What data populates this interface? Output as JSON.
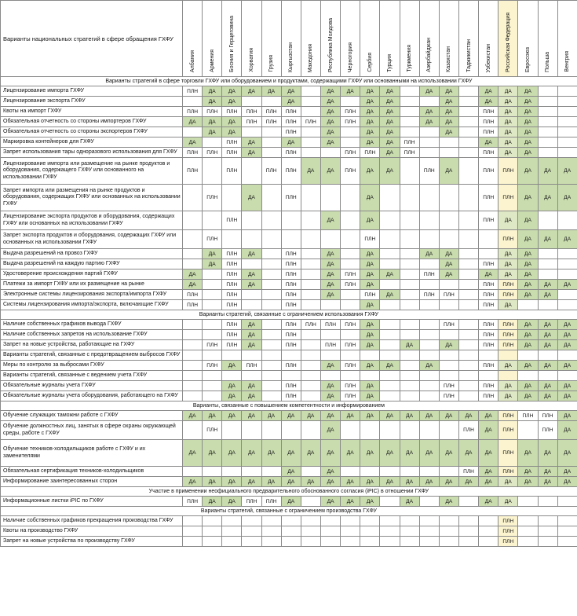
{
  "header": {
    "title": "Варианты национальных стратегий в сфере обращения ГХФУ",
    "countries": [
      "Албания",
      "Армения",
      "Босния и Герцеговина",
      "Хорватия",
      "Грузия",
      "Кыргызстан",
      "Македония",
      "Республика Молдова",
      "Черногория",
      "Сербия",
      "Турция",
      "Туркмения",
      "Азербайджан",
      "Казахстан",
      "Таджикистан",
      "Узбекистан",
      "Российская Федерация",
      "Евросоюз",
      "Польша",
      "Венгрия"
    ]
  },
  "colors": {
    "da": "#c9dcae",
    "highlight": "#fbf4cf"
  },
  "sections": [
    {
      "title": "Варианты стратегий в сфере торговли ГХФУ или оборудованием и продуктами, содержащими ГХФУ или основанными на использовании ГХФУ",
      "rows": [
        {
          "label": "Лицензирование импорта ГХФУ",
          "h": 1,
          "cells": [
            "ПЛН",
            "ДА",
            "ДА",
            "ДА",
            "ДА",
            "ДА",
            "",
            "ДА",
            "ДА",
            "ДА",
            "ДА",
            "",
            "ДА",
            "ДА",
            "",
            "ДА",
            "ДА",
            "ДА",
            "",
            ""
          ]
        },
        {
          "label": "Лицензирование экспорта ГХФУ",
          "h": 1,
          "cells": [
            "",
            "ДА",
            "ДА",
            "",
            "",
            "ДА",
            "",
            "ДА",
            "",
            "ДА",
            "ДА",
            "",
            "",
            "ДА",
            "",
            "ДА",
            "ДА",
            "ДА",
            "",
            ""
          ]
        },
        {
          "label": "Квоты на импорт ГХФУ",
          "h": 1,
          "cells": [
            "ПЛН",
            "ПЛН",
            "ПЛН",
            "ПЛН",
            "ПЛН",
            "ПЛН",
            "",
            "ДА",
            "ПЛН",
            "ДА",
            "ДА",
            "",
            "ДА",
            "ДА",
            "",
            "ПЛН",
            "ДА",
            "ДА",
            "",
            ""
          ]
        },
        {
          "label": "Обязательная отчетность со стороны импортеров ГХФУ",
          "h": 1,
          "cells": [
            "ДА",
            "ДА",
            "ДА",
            "ПЛН",
            "ПЛН",
            "ПЛН",
            "ПЛН",
            "ДА",
            "ПЛН",
            "ДА",
            "ДА",
            "",
            "ДА",
            "ДА",
            "",
            "ПЛН",
            "ДА",
            "ДА",
            "",
            ""
          ]
        },
        {
          "label": "Обязательная отчетность со стороны экспортеров ГХФУ",
          "h": 1,
          "cells": [
            "",
            "ДА",
            "ДА",
            "",
            "",
            "ПЛН",
            "",
            "ДА",
            "",
            "ДА",
            "ДА",
            "",
            "",
            "ДА",
            "",
            "ПЛН",
            "ДА",
            "ДА",
            "",
            ""
          ]
        },
        {
          "label": "Маркировка контейнеров для ГХФУ",
          "h": 1,
          "cells": [
            "ДА",
            "",
            "ПЛН",
            "ДА",
            "",
            "ДА",
            "",
            "ДА",
            "",
            "ДА",
            "ДА",
            "ПЛН",
            "",
            "",
            "",
            "ДА",
            "ДА",
            "ДА",
            "",
            ""
          ]
        },
        {
          "label": "Запрет использования тары одноразового использования для ГХФУ",
          "h": 1,
          "cells": [
            "ПЛН",
            "ПЛН",
            "ПЛН",
            "ДА",
            "",
            "ПЛН",
            "",
            "",
            "ПЛН",
            "ПЛН",
            "ДА",
            "ПЛН",
            "",
            "",
            "",
            "ПЛН",
            "ДА",
            "ДА",
            "",
            ""
          ]
        },
        {
          "label": "Лицензирование импорта или размещение на рынке продуктов и оборудования, содержащего ГХФУ или основанного на использовании ГХФУ",
          "h": 3,
          "cells": [
            "ПЛН",
            "",
            "ПЛН",
            "",
            "ПЛН",
            "ПЛН",
            "ДА",
            "ДА",
            "ПЛН",
            "ДА",
            "ДА",
            "",
            "ПЛН",
            "ДА",
            "",
            "ПЛН",
            "ПЛН",
            "ДА",
            "ДА",
            "ДА"
          ]
        },
        {
          "label": "Запрет импорта или размещения на рынке продуктов и оборудования, содержащих ГХФУ или основанных на использовании ГХФУ",
          "h": 3,
          "cells": [
            "",
            "ПЛН",
            "",
            "ДА",
            "",
            "ПЛН",
            "",
            "",
            "",
            "ДА",
            "",
            "",
            "",
            "",
            "",
            "ПЛН",
            "ПЛН",
            "ДА",
            "ДА",
            "ДА"
          ]
        },
        {
          "label": "Лицензирование экспорта продуктов и оборудования, содержащих ГХФУ или основанных на использовании ГХФУ",
          "h": 2,
          "cells": [
            "",
            "",
            "ПЛН",
            "",
            "",
            "",
            "",
            "ДА",
            "",
            "ДА",
            "",
            "",
            "",
            "",
            "",
            "ПЛН",
            "ДА",
            "ДА",
            "",
            ""
          ]
        },
        {
          "label": "Запрет экспорта продуктов и оборудования, содержащих ГХФУ или основанных на использовании ГХФУ",
          "h": 2,
          "cells": [
            "",
            "ПЛН",
            "",
            "",
            "",
            "",
            "",
            "",
            "",
            "ПЛН",
            "",
            "",
            "",
            "",
            "",
            "",
            "ПЛН",
            "ДА",
            "ДА",
            "ДА"
          ]
        },
        {
          "label": "Выдача разрешений на провоз ГХФУ",
          "h": 1,
          "cells": [
            "",
            "ДА",
            "ПЛН",
            "ДА",
            "",
            "ПЛН",
            "",
            "ДА",
            "",
            "ДА",
            "",
            "",
            "ДА",
            "ДА",
            "",
            "",
            "ДА",
            "ДА",
            "",
            ""
          ]
        },
        {
          "label": "Выдача разрешений на каждую партию ГХФУ",
          "h": 1,
          "cells": [
            "",
            "ДА",
            "ПЛН",
            "",
            "",
            "ПЛН",
            "",
            "ДА",
            "",
            "ДА",
            "",
            "",
            "",
            "ДА",
            "",
            "ПЛН",
            "ДА",
            "ДА",
            "",
            ""
          ]
        },
        {
          "label": "Удостоверение происхождения партий ГХФУ",
          "h": 1,
          "cells": [
            "ДА",
            "",
            "ПЛН",
            "ДА",
            "",
            "ПЛН",
            "",
            "ДА",
            "ПЛН",
            "ДА",
            "ДА",
            "",
            "ПЛН",
            "ДА",
            "",
            "ДА",
            "ДА",
            "ДА",
            "",
            ""
          ]
        },
        {
          "label": "Платежи за импорт ГХФУ или их размещение на рынке",
          "h": 1,
          "cells": [
            "ДА",
            "",
            "ПЛН",
            "ДА",
            "",
            "ПЛН",
            "",
            "ДА",
            "ПЛН",
            "ДА",
            "",
            "",
            "",
            "",
            "",
            "ПЛН",
            "ПЛН",
            "ДА",
            "ДА",
            "ДА"
          ]
        },
        {
          "label": "Электронные системы лицензирования экспорта/импорта ГХФУ",
          "h": 1,
          "cells": [
            "ПЛН",
            "",
            "ПЛН",
            "",
            "",
            "ПЛН",
            "",
            "ДА",
            "",
            "ПЛН",
            "ДА",
            "",
            "ПЛН",
            "ПЛН",
            "",
            "ПЛН",
            "ПЛН",
            "ДА",
            "ДА",
            ""
          ]
        },
        {
          "label": "Системы лицензирования импорта/экспорта, включающие ГХФУ",
          "h": 1,
          "cells": [
            "ПЛН",
            "",
            "ПЛН",
            "",
            "",
            "ПЛН",
            "",
            "",
            "",
            "ДА",
            "",
            "",
            "",
            "",
            "",
            "ПЛН",
            "ДА",
            "",
            "",
            ""
          ]
        }
      ]
    },
    {
      "title": "Варианты стратегий, связанные с ограничением использования ГХФУ",
      "rows": [
        {
          "label": "Наличие собственных графиков вывода ГХФУ",
          "h": 1,
          "cells": [
            "",
            "",
            "ПЛН",
            "ДА",
            "",
            "ПЛН",
            "ПЛН",
            "ПЛН",
            "ПЛН",
            "ДА",
            "",
            "",
            "",
            "ПЛН",
            "",
            "ПЛН",
            "ПЛН",
            "ДА",
            "ДА",
            "ДА"
          ]
        },
        {
          "label": "Наличие собственных запретов на использование ГХФУ",
          "h": 1,
          "cells": [
            "",
            "",
            "ПЛН",
            "ДА",
            "",
            "ПЛН",
            "",
            "",
            "",
            "ДА",
            "",
            "",
            "",
            "",
            "",
            "ПЛН",
            "ПЛН",
            "ДА",
            "ДА",
            "ДА"
          ]
        },
        {
          "label": "Запрет на новые устройства, работающие на ГХФУ",
          "h": 1,
          "cells": [
            "",
            "ПЛН",
            "ПЛН",
            "ДА",
            "",
            "ПЛН",
            "",
            "ПЛН",
            "ПЛН",
            "ДА",
            "",
            "ДА",
            "",
            "ДА",
            "",
            "ПЛН",
            "ПЛН",
            "ДА",
            "ДА",
            "ДА"
          ]
        },
        {
          "label": "Варианты стратегий, связанные с предотвращением выбросов ГХФУ",
          "h": 1,
          "cells": [
            "",
            "",
            "",
            "",
            "",
            "",
            "",
            "",
            "",
            "",
            "",
            "",
            "",
            "",
            "",
            "",
            "",
            "",
            "",
            ""
          ]
        },
        {
          "label": "Меры по контролю за выбросами ГХФУ",
          "h": 1,
          "cells": [
            "",
            "ПЛН",
            "ДА",
            "ПЛН",
            "",
            "ПЛН",
            "",
            "ДА",
            "ПЛН",
            "ДА",
            "ДА",
            "",
            "ДА",
            "",
            "",
            "ПЛН",
            "ДА",
            "ДА",
            "ДА",
            "ДА"
          ]
        },
        {
          "label": "Варианты стратегий, связанные с ведением учета ГХФУ",
          "h": 1,
          "cells": [
            "",
            "",
            "",
            "",
            "",
            "",
            "",
            "",
            "",
            "",
            "",
            "",
            "",
            "",
            "",
            "",
            "",
            "",
            "",
            ""
          ]
        },
        {
          "label": "Обязательные журналы учета ГХФУ",
          "h": 1,
          "cells": [
            "",
            "",
            "ДА",
            "ДА",
            "",
            "ПЛН",
            "",
            "ДА",
            "ПЛН",
            "ДА",
            "",
            "",
            "",
            "ПЛН",
            "",
            "ПЛН",
            "ДА",
            "ДА",
            "ДА",
            "ДА"
          ]
        },
        {
          "label": "Обязательные журналы учета оборудования, работающего на ГХФУ",
          "h": 1,
          "cells": [
            "",
            "",
            "ДА",
            "ДА",
            "",
            "ПЛН",
            "",
            "ДА",
            "ПЛН",
            "ДА",
            "",
            "",
            "",
            "ПЛН",
            "",
            "ПЛН",
            "ДА",
            "ДА",
            "ДА",
            "ДА"
          ]
        }
      ]
    },
    {
      "title": "Варианты, связанные с повышением компетентности и информированием",
      "rows": [
        {
          "label": "Обучение служащих таможни работе с ГХФУ",
          "h": 1,
          "cells": [
            "ДА",
            "ДА",
            "ДА",
            "ДА",
            "ДА",
            "ДА",
            "ДА",
            "ДА",
            "ДА",
            "ДА",
            "ДА",
            "ДА",
            "ДА",
            "ДА",
            "ДА",
            "ДА",
            "ПЛН",
            "ПЛН",
            "ПЛН",
            "ДА"
          ]
        },
        {
          "label": "Обучение должностных лиц, занятых в сфере охраны окружающей среды, работе с ГХФУ",
          "h": 2,
          "cells": [
            "",
            "ПЛН",
            "",
            "",
            "",
            "",
            "",
            "ДА",
            "",
            "",
            "",
            "",
            "",
            "",
            "ПЛН",
            "ДА",
            "ПЛН",
            "",
            "ПЛН",
            "ДА"
          ]
        },
        {
          "label": "Обучение техников-холодильщиков работе с ГХФУ и их заменителями",
          "h": 3,
          "cells": [
            "ДА",
            "ДА",
            "ДА",
            "ДА",
            "ДА",
            "ДА",
            "ДА",
            "ДА",
            "ДА",
            "ДА",
            "ДА",
            "ДА",
            "ДА",
            "ДА",
            "ДА",
            "ДА",
            "ПЛН",
            "ДА",
            "ДА",
            "ДА"
          ]
        },
        {
          "label": "Обязательная сертификация техников-холодильщиков",
          "h": 1,
          "cells": [
            "",
            "",
            "",
            "",
            "",
            "ДА",
            "",
            "ДА",
            "",
            "",
            "",
            "",
            "",
            "",
            "ПЛН",
            "ДА",
            "ПЛН",
            "ДА",
            "ДА",
            "ДА"
          ]
        },
        {
          "label": "Информирование заинтересованных сторон",
          "h": 1,
          "cells": [
            "ДА",
            "ДА",
            "ДА",
            "ДА",
            "ДА",
            "ДА",
            "ДА",
            "ДА",
            "ДА",
            "ДА",
            "ДА",
            "ДА",
            "ДА",
            "ДА",
            "ДА",
            "ДА",
            "ДА",
            "ДА",
            "ДА",
            "ДА"
          ]
        }
      ]
    },
    {
      "title": "Участие в применении неофициального предварительного обоснованного согласия (iPIC) в отношении ГХФУ",
      "rows": [
        {
          "label": "Информационные листки iPIC по ГХФУ",
          "h": 1,
          "cells": [
            "ПЛН",
            "ДА",
            "ДА",
            "ПЛН",
            "ПЛН",
            "ДА",
            "",
            "ДА",
            "ДА",
            "ДА",
            "",
            "ДА",
            "",
            "ДА",
            "",
            "ДА",
            "ДА",
            "",
            "",
            ""
          ]
        }
      ]
    },
    {
      "title": "Варианты стратегий, связанные с ограничением производства ГХФУ",
      "rows": [
        {
          "label": "Наличие собственных графиков прекращения производства ГХФУ",
          "h": 1,
          "cells": [
            "",
            "",
            "",
            "",
            "",
            "",
            "",
            "",
            "",
            "",
            "",
            "",
            "",
            "",
            "",
            "",
            "ПЛН",
            "",
            "",
            ""
          ]
        },
        {
          "label": "Квоты на производство ГХФУ",
          "h": 1,
          "cells": [
            "",
            "",
            "",
            "",
            "",
            "",
            "",
            "",
            "",
            "",
            "",
            "",
            "",
            "",
            "",
            "",
            "ПЛН",
            "",
            "",
            ""
          ]
        },
        {
          "label": "Запрет на новые устройства по производству ГХФУ",
          "h": 1,
          "cells": [
            "",
            "",
            "",
            "",
            "",
            "",
            "",
            "",
            "",
            "",
            "",
            "",
            "",
            "",
            "",
            "",
            "ПЛН",
            "",
            "",
            ""
          ]
        }
      ]
    }
  ]
}
